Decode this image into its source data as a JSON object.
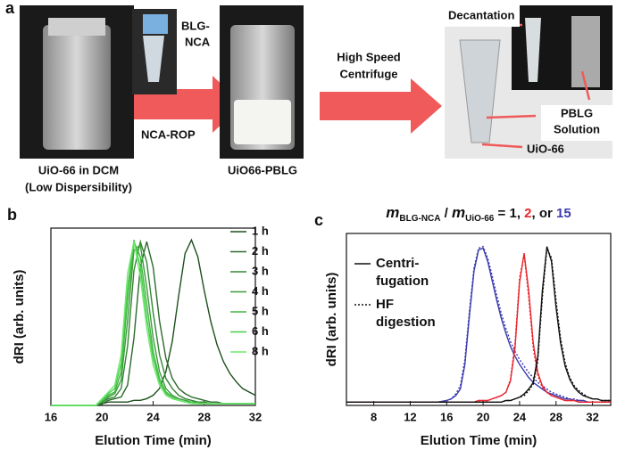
{
  "panel_a": {
    "label": "a",
    "inset_label": [
      "BLG-",
      "NCA"
    ],
    "arrow1_label": "NCA-ROP",
    "arrow2_label": [
      "High Speed",
      "Centrifuge"
    ],
    "left_caption": [
      "UiO-66 in DCM",
      "(Low Dispersibility)"
    ],
    "middle_caption": "UiO66-PBLG",
    "decantation": "Decantation",
    "solution": [
      "PBLG",
      "Solution"
    ],
    "pellet": "UiO-66"
  },
  "chart_data": [
    {
      "type": "line",
      "panel": "b",
      "xlabel": "Elution Time (min)",
      "ylabel": "dRI (arb. units)",
      "xlim": [
        16,
        32
      ],
      "xticks": [
        16,
        20,
        24,
        28,
        32
      ],
      "ylim": [
        0,
        1.05
      ],
      "legend": "upper right",
      "x": [
        16,
        16.5,
        17,
        17.5,
        18,
        18.5,
        19,
        19.5,
        20,
        20.5,
        21,
        21.5,
        22,
        22.5,
        23,
        23.5,
        24,
        24.5,
        25,
        25.5,
        26,
        26.5,
        27,
        27.5,
        28,
        28.5,
        29,
        29.5,
        30,
        30.5,
        31,
        31.5,
        32
      ],
      "series": [
        {
          "name": "1 h",
          "color": "#1d4f1d",
          "values": [
            0,
            0,
            0,
            0,
            0,
            0,
            0,
            0,
            0.01,
            0.02,
            0.02,
            0.02,
            0.02,
            0.03,
            0.03,
            0.04,
            0.06,
            0.1,
            0.2,
            0.38,
            0.65,
            0.9,
            0.98,
            0.88,
            0.68,
            0.5,
            0.36,
            0.26,
            0.19,
            0.14,
            0.1,
            0.08,
            0.06
          ]
        },
        {
          "name": "2 h",
          "color": "#2c6a2c",
          "values": [
            0,
            0,
            0,
            0,
            0,
            0,
            0,
            0,
            0.01,
            0.03,
            0.04,
            0.05,
            0.12,
            0.4,
            0.82,
            0.97,
            0.82,
            0.5,
            0.28,
            0.16,
            0.1,
            0.07,
            0.05,
            0.04,
            0.03,
            0.02,
            0.02,
            0.01,
            0.01,
            0.01,
            0.01,
            0.01,
            0.01
          ]
        },
        {
          "name": "3 h",
          "color": "#358535",
          "values": [
            0,
            0,
            0,
            0,
            0,
            0,
            0,
            0,
            0.02,
            0.04,
            0.05,
            0.1,
            0.35,
            0.8,
            0.97,
            0.85,
            0.55,
            0.3,
            0.16,
            0.1,
            0.06,
            0.04,
            0.03,
            0.02,
            0.02,
            0.01,
            0.01,
            0.01,
            0.01,
            0.01,
            0.01,
            0.01,
            0.01
          ]
        },
        {
          "name": "4 h",
          "color": "#3a9c3a",
          "values": [
            0,
            0,
            0,
            0,
            0,
            0,
            0,
            0,
            0.02,
            0.05,
            0.07,
            0.15,
            0.5,
            0.92,
            0.95,
            0.7,
            0.4,
            0.2,
            0.1,
            0.06,
            0.04,
            0.03,
            0.02,
            0.02,
            0.01,
            0.01,
            0.01,
            0.01,
            0.01,
            0.01,
            0.01,
            0.01,
            0.01
          ]
        },
        {
          "name": "5 h",
          "color": "#40b540",
          "values": [
            0,
            0,
            0,
            0,
            0,
            0,
            0,
            0,
            0.03,
            0.06,
            0.08,
            0.2,
            0.62,
            0.97,
            0.88,
            0.6,
            0.32,
            0.16,
            0.08,
            0.05,
            0.03,
            0.02,
            0.02,
            0.01,
            0.01,
            0.01,
            0.01,
            0.01,
            0.01,
            0.01,
            0.01,
            0.01,
            0.01
          ]
        },
        {
          "name": "6 h",
          "color": "#48cc48",
          "values": [
            0,
            0,
            0,
            0,
            0,
            0,
            0,
            0,
            0.03,
            0.07,
            0.1,
            0.25,
            0.7,
            0.98,
            0.82,
            0.52,
            0.28,
            0.14,
            0.07,
            0.04,
            0.03,
            0.02,
            0.02,
            0.01,
            0.01,
            0.01,
            0.01,
            0.01,
            0.01,
            0.01,
            0.01,
            0.01,
            0.01
          ]
        },
        {
          "name": "8 h",
          "color": "#6fe86f",
          "values": [
            0,
            0,
            0,
            0,
            0,
            0,
            0,
            0,
            0.04,
            0.08,
            0.12,
            0.3,
            0.78,
            0.97,
            0.76,
            0.46,
            0.24,
            0.12,
            0.06,
            0.04,
            0.03,
            0.02,
            0.01,
            0.01,
            0.01,
            0.01,
            0.01,
            0.01,
            0.01,
            0.01,
            0.01,
            0.01,
            0.01
          ]
        }
      ]
    },
    {
      "type": "line",
      "panel": "c",
      "title_parts": [
        {
          "text": "m",
          "style": "italic"
        },
        {
          "text": "BLG-NCA",
          "style": "sub"
        },
        {
          "text": " / "
        },
        {
          "text": "m",
          "style": "italic"
        },
        {
          "text": "UiO-66",
          "style": "sub"
        },
        {
          "text": " = "
        },
        {
          "text": "1",
          "color": "#111111"
        },
        {
          "text": ", "
        },
        {
          "text": "2",
          "color": "#e8262e"
        },
        {
          "text": ", or "
        },
        {
          "text": "15",
          "color": "#3b3bb0"
        }
      ],
      "xlabel": "Elution Time (min)",
      "ylabel": "dRI (arb. units)",
      "xlim": [
        5,
        34
      ],
      "xticks": [
        8,
        12,
        16,
        20,
        24,
        28,
        32
      ],
      "ylim": [
        0,
        1.05
      ],
      "legend_entries": [
        {
          "label": [
            "Centri-",
            "fugation"
          ],
          "dash": "solid"
        },
        {
          "label": [
            "HF",
            "digestion"
          ],
          "dash": "dotted"
        }
      ],
      "x": [
        5,
        7,
        9,
        11,
        13,
        15,
        16,
        16.5,
        17,
        17.5,
        18,
        18.5,
        19,
        19.5,
        20,
        20.5,
        21,
        21.5,
        22,
        22.5,
        23,
        23.5,
        24,
        24.5,
        25,
        25.5,
        26,
        26.5,
        27,
        27.5,
        28,
        28.5,
        29,
        29.5,
        30,
        30.5,
        31,
        31.5,
        32,
        32.5,
        33,
        33.5,
        34
      ],
      "series": [
        {
          "color": "#3b3bb0",
          "dash": "solid",
          "values": [
            0.02,
            0.02,
            0.02,
            0.02,
            0.02,
            0.02,
            0.03,
            0.04,
            0.06,
            0.1,
            0.25,
            0.55,
            0.82,
            0.95,
            0.96,
            0.88,
            0.76,
            0.64,
            0.53,
            0.44,
            0.36,
            0.3,
            0.25,
            0.21,
            0.17,
            0.14,
            0.12,
            0.1,
            0.08,
            0.07,
            0.06,
            0.05,
            0.04,
            0.04,
            0.03,
            0.03,
            0.03,
            0.02,
            0.02,
            0.02,
            0.02,
            0.02,
            0.02
          ]
        },
        {
          "color": "#3b3bb0",
          "dash": "dotted",
          "values": [
            0.02,
            0.02,
            0.02,
            0.02,
            0.02,
            0.02,
            0.03,
            0.04,
            0.07,
            0.12,
            0.28,
            0.58,
            0.84,
            0.96,
            0.97,
            0.9,
            0.79,
            0.67,
            0.56,
            0.47,
            0.39,
            0.33,
            0.28,
            0.24,
            0.2,
            0.17,
            0.14,
            0.12,
            0.1,
            0.08,
            0.07,
            0.06,
            0.05,
            0.04,
            0.04,
            0.03,
            0.03,
            0.02,
            0.02,
            0.02,
            0.02,
            0.02,
            0.02
          ]
        },
        {
          "color": "#e8262e",
          "dash": "solid",
          "values": [
            0.02,
            0.02,
            0.02,
            0.02,
            0.02,
            0.02,
            0.02,
            0.02,
            0.02,
            0.02,
            0.02,
            0.02,
            0.02,
            0.03,
            0.03,
            0.03,
            0.04,
            0.05,
            0.06,
            0.08,
            0.15,
            0.35,
            0.75,
            0.93,
            0.7,
            0.38,
            0.2,
            0.12,
            0.08,
            0.06,
            0.05,
            0.04,
            0.03,
            0.03,
            0.03,
            0.02,
            0.02,
            0.02,
            0.02,
            0.02,
            0.02,
            0.02,
            0.02
          ]
        },
        {
          "color": "#e8262e",
          "dash": "dotted",
          "values": [
            0.02,
            0.02,
            0.02,
            0.02,
            0.02,
            0.02,
            0.02,
            0.02,
            0.02,
            0.02,
            0.02,
            0.02,
            0.02,
            0.03,
            0.03,
            0.03,
            0.04,
            0.05,
            0.06,
            0.08,
            0.16,
            0.38,
            0.78,
            0.92,
            0.66,
            0.35,
            0.18,
            0.11,
            0.08,
            0.06,
            0.05,
            0.04,
            0.03,
            0.03,
            0.03,
            0.02,
            0.02,
            0.02,
            0.02,
            0.02,
            0.02,
            0.02,
            0.02
          ]
        },
        {
          "color": "#111111",
          "dash": "solid",
          "values": [
            0.02,
            0.02,
            0.02,
            0.02,
            0.02,
            0.02,
            0.02,
            0.02,
            0.02,
            0.02,
            0.02,
            0.02,
            0.02,
            0.02,
            0.02,
            0.02,
            0.02,
            0.02,
            0.02,
            0.03,
            0.03,
            0.04,
            0.05,
            0.07,
            0.1,
            0.14,
            0.3,
            0.7,
            0.97,
            0.88,
            0.6,
            0.38,
            0.24,
            0.16,
            0.11,
            0.08,
            0.06,
            0.05,
            0.04,
            0.04,
            0.03,
            0.03,
            0.03
          ]
        },
        {
          "color": "#111111",
          "dash": "dotted",
          "values": [
            0.02,
            0.02,
            0.02,
            0.02,
            0.02,
            0.02,
            0.02,
            0.02,
            0.02,
            0.02,
            0.02,
            0.02,
            0.02,
            0.02,
            0.02,
            0.02,
            0.02,
            0.02,
            0.02,
            0.03,
            0.03,
            0.04,
            0.05,
            0.06,
            0.09,
            0.13,
            0.27,
            0.66,
            0.96,
            0.9,
            0.64,
            0.41,
            0.26,
            0.17,
            0.12,
            0.09,
            0.07,
            0.05,
            0.04,
            0.04,
            0.03,
            0.03,
            0.03
          ]
        }
      ]
    }
  ]
}
